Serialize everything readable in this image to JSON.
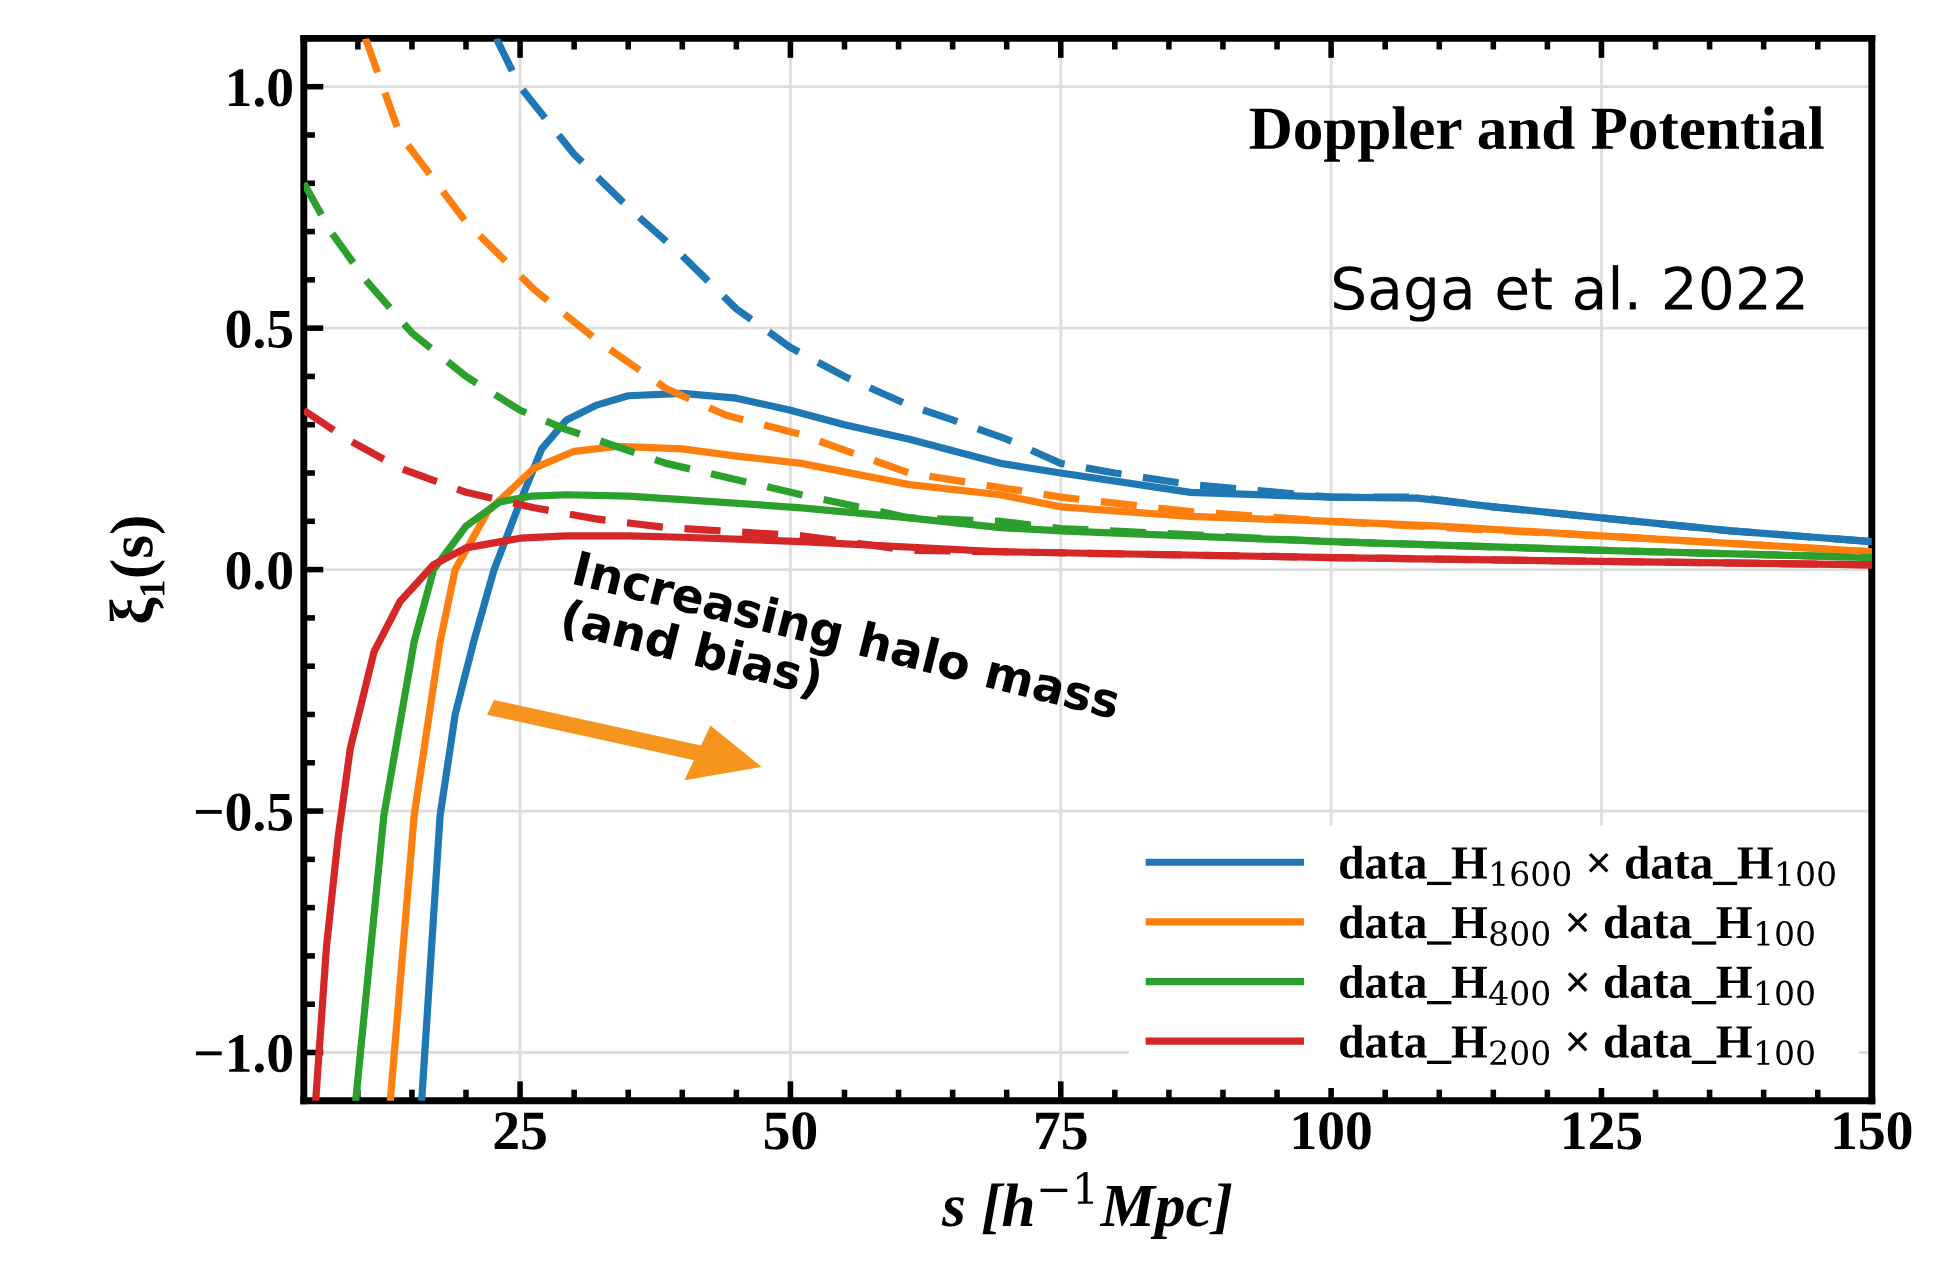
{
  "chart_data": {
    "type": "line",
    "title": "Doppler and Potential",
    "xlabel": "s [h$^{−1}$Mpc]",
    "ylabel": "ξ₁(s)",
    "annotations": [
      "Saga et al. 2022",
      "Increasing halo mass\n(and bias)"
    ],
    "xlim": [
      5,
      150
    ],
    "ylim": [
      -1.1,
      1.1
    ],
    "xticks": [
      25,
      50,
      75,
      100,
      125,
      150
    ],
    "yticks": [
      {
        "value": -1.0,
        "label": "−1.0"
      },
      {
        "value": -0.5,
        "label": "−0.5"
      },
      {
        "value": 0,
        "label": "0.0"
      },
      {
        "value": 0.5,
        "label": "0.5"
      },
      {
        "value": 1.0,
        "label": "1.0"
      }
    ],
    "grid": true,
    "legend": "bottom right",
    "marker": "none",
    "series": [
      {
        "name": "data_H$_{1600}$ × data_H$_{100}$",
        "color": "#1f77b4",
        "line_style": "solid",
        "x": [
          15.9,
          17.6,
          19,
          20.7,
          22.6,
          25,
          27,
          29.3,
          32,
          35,
          40,
          45,
          50,
          55,
          61,
          69.4,
          75,
          87,
          100,
          108,
          115,
          125,
          137,
          150
        ],
        "values": [
          -1.1,
          -0.51,
          -0.3,
          -0.15,
          0,
          0.14,
          0.25,
          0.31,
          0.34,
          0.36,
          0.365,
          0.355,
          0.33,
          0.3,
          0.27,
          0.22,
          0.2,
          0.16,
          0.15,
          0.148,
          0.13,
          0.107,
          0.08,
          0.058
        ]
      },
      {
        "name": "data_H$_{800}$ × data_H$_{100}$",
        "color": "#ff7f0e",
        "line_style": "solid",
        "x": [
          13,
          15.2,
          17.6,
          19,
          22,
          26.3,
          30,
          34,
          40,
          45,
          51,
          61,
          69.4,
          75,
          87,
          100,
          110,
          125,
          150
        ],
        "values": [
          -1.1,
          -0.51,
          -0.15,
          0,
          0.12,
          0.21,
          0.245,
          0.255,
          0.25,
          0.235,
          0.22,
          0.176,
          0.155,
          0.13,
          0.11,
          0.1,
          0.09,
          0.07,
          0.037
        ]
      },
      {
        "name": "data_H$_{400}$ × data_H$_{100}$",
        "color": "#2ca02c",
        "line_style": "solid",
        "x": [
          9.8,
          12.4,
          15.2,
          17,
          20,
          23.1,
          26,
          29.3,
          35,
          40,
          51,
          61,
          69.4,
          75,
          100,
          125,
          150
        ],
        "values": [
          -1.1,
          -0.51,
          -0.15,
          0,
          0.09,
          0.14,
          0.152,
          0.155,
          0.152,
          0.145,
          0.128,
          0.107,
          0.087,
          0.08,
          0.058,
          0.04,
          0.025
        ]
      },
      {
        "name": "data_H$_{200}$ × data_H$_{100}$",
        "color": "#d62728",
        "line_style": "solid",
        "x": [
          6.1,
          7.1,
          8.2,
          9.3,
          11.5,
          13.9,
          17,
          20,
          25,
          29.3,
          35,
          40,
          51,
          69.4,
          100,
          125,
          150
        ],
        "values": [
          -1.1,
          -0.78,
          -0.55,
          -0.37,
          -0.17,
          -0.066,
          0.01,
          0.045,
          0.065,
          0.07,
          0.07,
          0.067,
          0.058,
          0.037,
          0.025,
          0.017,
          0.01
        ]
      },
      {
        "color": "#1f77b4",
        "line_style": "dashed",
        "x": [
          22.8,
          25,
          30,
          35,
          40,
          45,
          50,
          55,
          61,
          65,
          70,
          75,
          80,
          87,
          100,
          108,
          115,
          125,
          137,
          150
        ],
        "values": [
          1.1,
          1.0,
          0.86,
          0.75,
          0.65,
          0.54,
          0.46,
          0.4,
          0.34,
          0.31,
          0.27,
          0.22,
          0.2,
          0.176,
          0.15,
          0.15,
          0.13,
          0.107,
          0.08,
          0.058
        ]
      },
      {
        "color": "#ff7f0e",
        "line_style": "dashed",
        "x": [
          10.7,
          13.9,
          20,
          26.3,
          32.4,
          38.5,
          44,
          50.9,
          61,
          69.4,
          75,
          87,
          100,
          108,
          125,
          150
        ],
        "values": [
          1.1,
          0.9,
          0.72,
          0.58,
          0.47,
          0.375,
          0.32,
          0.28,
          0.2,
          0.17,
          0.15,
          0.12,
          0.1,
          0.09,
          0.07,
          0.037
        ]
      },
      {
        "color": "#2ca02c",
        "line_style": "dashed",
        "x": [
          5,
          7.5,
          10.7,
          15,
          20,
          25,
          29.3,
          38.5,
          51,
          61,
          69.4,
          75,
          100,
          125,
          150
        ],
        "values": [
          0.8,
          0.7,
          0.6,
          0.49,
          0.4,
          0.33,
          0.29,
          0.22,
          0.155,
          0.107,
          0.1,
          0.085,
          0.058,
          0.04,
          0.025
        ]
      },
      {
        "color": "#d62728",
        "line_style": "dashed",
        "x": [
          5,
          9,
          13.9,
          20,
          26.3,
          32,
          38.5,
          51,
          61,
          69.4,
          100,
          125,
          150
        ],
        "values": [
          0.33,
          0.27,
          0.21,
          0.16,
          0.128,
          0.105,
          0.087,
          0.07,
          0.04,
          0.037,
          0.025,
          0.017,
          0.01
        ]
      }
    ]
  }
}
